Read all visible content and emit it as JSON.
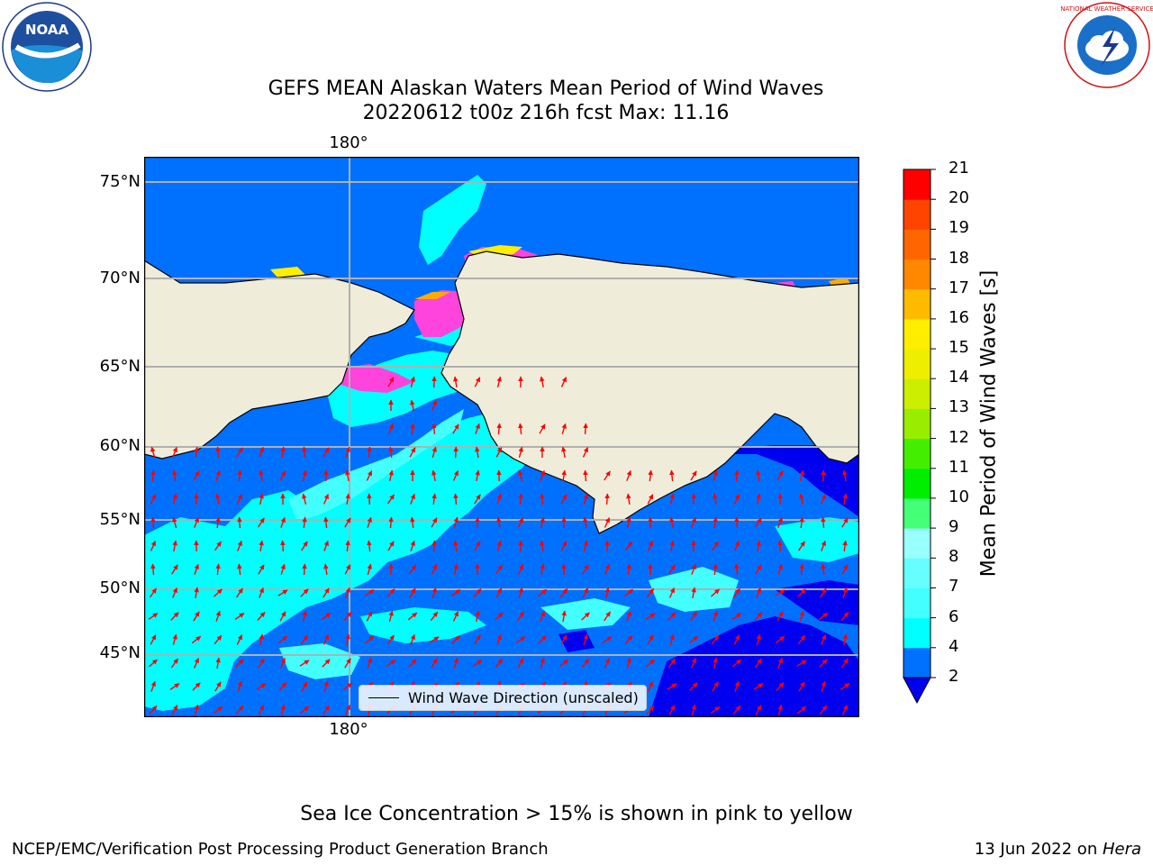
{
  "title": {
    "line1": "GEFS MEAN Alaskan Waters Mean Period of Wind Waves",
    "line2": "20220612 t00z 216h fcst   Max: 11.16"
  },
  "map": {
    "lon_label_top": "180°",
    "lon_label_bottom": "180°",
    "lat_labels": [
      "75°N",
      "70°N",
      "65°N",
      "60°N",
      "55°N",
      "50°N",
      "45°N"
    ],
    "legend_text": "Wind Wave Direction (unscaled)",
    "colors": {
      "land": "#efedda",
      "coast": "#000000",
      "grid": "#b0b0b0",
      "arrow": "#ff0000",
      "band_2_4": "#0070ff",
      "band_0_2": "#0000f0",
      "band_4_6": "#00ffff",
      "band_6_8": "#44ffff",
      "ice_pink": "#ff44dd",
      "ice_yellow": "#ffee00",
      "ice_orange": "#ffaa00"
    }
  },
  "colorbar": {
    "label": "Mean Period of Wind Waves [s]",
    "ticks": [
      "2",
      "4",
      "6",
      "7",
      "8",
      "9",
      "10",
      "11",
      "12",
      "13",
      "14",
      "15",
      "16",
      "17",
      "18",
      "19",
      "20",
      "21"
    ],
    "colors": [
      "#0070ff",
      "#00ffff",
      "#44ffff",
      "#66ffff",
      "#99ffff",
      "#44ff77",
      "#00ee00",
      "#44ee00",
      "#99ee00",
      "#ccee00",
      "#eeee00",
      "#ffee00",
      "#ffbb00",
      "#ff8800",
      "#ff6600",
      "#ff4400",
      "#ff0000"
    ],
    "extend_color": "#0000f0"
  },
  "footer": {
    "note": "Sea Ice Concentration > 15% is shown in pink to yellow",
    "credit": "NCEP/EMC/Verification Post Processing Product Generation Branch",
    "date_prefix": "13 Jun 2022 on ",
    "date_host": "Hera"
  },
  "logos": {
    "noaa_text": "NOAA",
    "nws_text": "NATIONAL WEATHER SERVICE"
  }
}
